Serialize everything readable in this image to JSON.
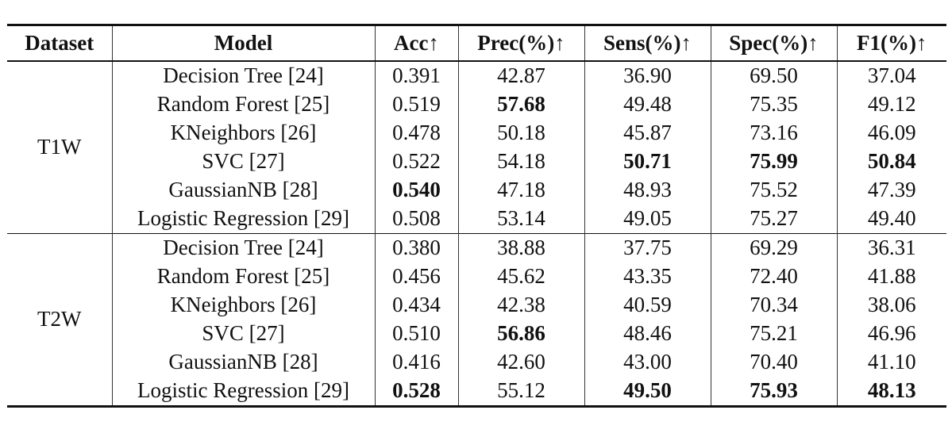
{
  "table": {
    "headers": [
      "Dataset",
      "Model",
      "Acc↑",
      "Prec(%)↑",
      "Sens(%)↑",
      "Spec(%)↑",
      "F1(%)↑"
    ],
    "groups": [
      {
        "dataset": "T1W",
        "rows": [
          {
            "model": "Decision Tree [24]",
            "acc": "0.391",
            "prec": "42.87",
            "sens": "36.90",
            "spec": "69.50",
            "f1": "37.04"
          },
          {
            "model": "Random Forest [25]",
            "acc": "0.519",
            "prec": "57.68",
            "sens": "49.48",
            "spec": "75.35",
            "f1": "49.12"
          },
          {
            "model": "KNeighbors [26]",
            "acc": "0.478",
            "prec": "50.18",
            "sens": "45.87",
            "spec": "73.16",
            "f1": "46.09"
          },
          {
            "model": "SVC [27]",
            "acc": "0.522",
            "prec": "54.18",
            "sens": "50.71",
            "spec": "75.99",
            "f1": "50.84"
          },
          {
            "model": "GaussianNB [28]",
            "acc": "0.540",
            "prec": "47.18",
            "sens": "48.93",
            "spec": "75.52",
            "f1": "47.39"
          },
          {
            "model": "Logistic Regression [29]",
            "acc": "0.508",
            "prec": "53.14",
            "sens": "49.05",
            "spec": "75.27",
            "f1": "49.40"
          }
        ]
      },
      {
        "dataset": "T2W",
        "rows": [
          {
            "model": "Decision Tree [24]",
            "acc": "0.380",
            "prec": "38.88",
            "sens": "37.75",
            "spec": "69.29",
            "f1": "36.31"
          },
          {
            "model": "Random Forest [25]",
            "acc": "0.456",
            "prec": "45.62",
            "sens": "43.35",
            "spec": "72.40",
            "f1": "41.88"
          },
          {
            "model": "KNeighbors [26]",
            "acc": "0.434",
            "prec": "42.38",
            "sens": "40.59",
            "spec": "70.34",
            "f1": "38.06"
          },
          {
            "model": "SVC [27]",
            "acc": "0.510",
            "prec": "56.86",
            "sens": "48.46",
            "spec": "75.21",
            "f1": "46.96"
          },
          {
            "model": "GaussianNB [28]",
            "acc": "0.416",
            "prec": "42.60",
            "sens": "43.00",
            "spec": "70.40",
            "f1": "41.10"
          },
          {
            "model": "Logistic Regression [29]",
            "acc": "0.528",
            "prec": "55.12",
            "sens": "49.50",
            "spec": "75.93",
            "f1": "48.13"
          }
        ]
      }
    ]
  }
}
